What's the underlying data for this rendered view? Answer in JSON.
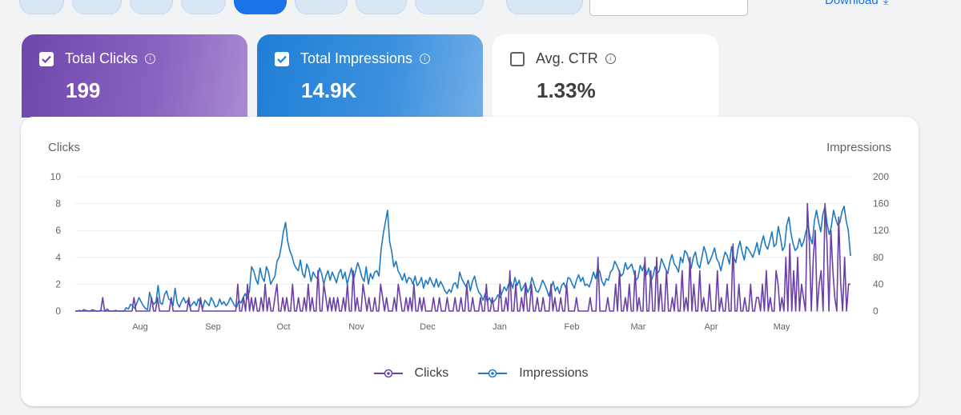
{
  "toolbar": {
    "download_label": "Download",
    "download_icon": "download-icon"
  },
  "cards": [
    {
      "label": "Total Clicks",
      "value": "199",
      "checked": true,
      "color": "#6f46ab"
    },
    {
      "label": "Total Impressions",
      "value": "14.9K",
      "checked": true,
      "color": "#1f7fd6"
    },
    {
      "label": "Avg. CTR",
      "value": "1.33%",
      "checked": false,
      "color": "#ffffff"
    }
  ],
  "chart_data": {
    "type": "line",
    "left_axis_label": "Clicks",
    "right_axis_label": "Impressions",
    "left_ylim": [
      0,
      10
    ],
    "left_ticks": [
      0,
      2,
      4,
      6,
      8,
      10
    ],
    "right_ylim": [
      0,
      200
    ],
    "right_ticks": [
      0,
      40,
      80,
      120,
      160,
      200
    ],
    "x_tick_labels": [
      "Aug",
      "Sep",
      "Oct",
      "Nov",
      "Dec",
      "Jan",
      "Feb",
      "Mar",
      "Apr",
      "May"
    ],
    "grid": true,
    "legend_position": "bottom",
    "series": [
      {
        "name": "Clicks",
        "axis": "left",
        "color": "#6a3fa8",
        "values": [
          0,
          0,
          0,
          0,
          0,
          0,
          0,
          0,
          0,
          0,
          0,
          0,
          0,
          0,
          1,
          0,
          0,
          0,
          0,
          0,
          0,
          0,
          0,
          0,
          0,
          0,
          0,
          0,
          0,
          0,
          1,
          0,
          0,
          0,
          0,
          0,
          0,
          0,
          0,
          1,
          0,
          0,
          1,
          0,
          0,
          0,
          0,
          0,
          0,
          1,
          0,
          0,
          0,
          0,
          0,
          0,
          0,
          0,
          1,
          0,
          0,
          0,
          0,
          0,
          1,
          0,
          0,
          0,
          0,
          0,
          0,
          0,
          0,
          0,
          0,
          0,
          0,
          0,
          0,
          0,
          0,
          0,
          0,
          2,
          0,
          0,
          1,
          0,
          2,
          0,
          1,
          0,
          1,
          0,
          0,
          1,
          0,
          2,
          0,
          1,
          0,
          0,
          1,
          2,
          0,
          0,
          1,
          0,
          1,
          0,
          0,
          2,
          0,
          0,
          1,
          0,
          0,
          1,
          0,
          2,
          0,
          1,
          0,
          0,
          3,
          0,
          0,
          2,
          1,
          0,
          1,
          0,
          1,
          0,
          1,
          0,
          0,
          1,
          0,
          2,
          0,
          0,
          3,
          0,
          1,
          0,
          0,
          2,
          1,
          0,
          1,
          0,
          0,
          1,
          0,
          0,
          2,
          1,
          0,
          1,
          0,
          0,
          0,
          1,
          0,
          2,
          1,
          0,
          0,
          1,
          0,
          1,
          0,
          2,
          0,
          0,
          1,
          0,
          1,
          0,
          0,
          0,
          0,
          1,
          0,
          0,
          1,
          0,
          0,
          0,
          1,
          0,
          0,
          0,
          1,
          0,
          0,
          1,
          0,
          0,
          2,
          0,
          0,
          1,
          0,
          0,
          0,
          1,
          0,
          0,
          2,
          0,
          0,
          1,
          0,
          0,
          0,
          2,
          0,
          0,
          1,
          0,
          3,
          0,
          0,
          2,
          0,
          0,
          1,
          0,
          2,
          0,
          0,
          2,
          0,
          0,
          1,
          0,
          0,
          1,
          0,
          0,
          0,
          2,
          0,
          1,
          0,
          0,
          1,
          0,
          0,
          2,
          0,
          0,
          0,
          0,
          1,
          0,
          0,
          0,
          0,
          0,
          0,
          1,
          0,
          0,
          0,
          4,
          0,
          0,
          0,
          0,
          1,
          0,
          0,
          0,
          2,
          0,
          3,
          0,
          0,
          1,
          0,
          2,
          0,
          0,
          3,
          0,
          1,
          0,
          0,
          4,
          0,
          0,
          3,
          0,
          0,
          4,
          0,
          2,
          0,
          0,
          3,
          0,
          0,
          1,
          0,
          2,
          0,
          0,
          3,
          0,
          1,
          0,
          4,
          0,
          2,
          0,
          0,
          3,
          0,
          1,
          0,
          0,
          2,
          0,
          0,
          0,
          3,
          0,
          1,
          0,
          0,
          2,
          0,
          0,
          5,
          0,
          0,
          2,
          0,
          0,
          1,
          0,
          0,
          2,
          0,
          0,
          1,
          1,
          0,
          2,
          0,
          3,
          0,
          1,
          0,
          0,
          3,
          2,
          0,
          1,
          0,
          4,
          0,
          5,
          0,
          3,
          0,
          4,
          0,
          2,
          1,
          0,
          8,
          5,
          0,
          4,
          6,
          0,
          2,
          3,
          0,
          8,
          5,
          0,
          6,
          3,
          1,
          0,
          7,
          2,
          0,
          4,
          0,
          2,
          2
        ]
      },
      {
        "name": "Impressions",
        "axis": "right",
        "color": "#1f7ac4",
        "values": [
          0,
          0,
          1,
          0,
          2,
          1,
          0,
          0,
          2,
          1,
          0,
          0,
          1,
          0,
          0,
          3,
          0,
          0,
          0,
          1,
          0,
          0,
          0,
          0,
          5,
          3,
          10,
          8,
          4,
          12,
          20,
          14,
          8,
          4,
          2,
          28,
          16,
          10,
          14,
          38,
          12,
          10,
          24,
          30,
          18,
          16,
          8,
          34,
          12,
          6,
          14,
          20,
          12,
          16,
          6,
          10,
          14,
          8,
          18,
          12,
          4,
          16,
          12,
          8,
          20,
          14,
          6,
          8,
          18,
          10,
          14,
          8,
          12,
          20,
          14,
          8,
          6,
          16,
          12,
          20,
          26,
          18,
          30,
          66,
          60,
          48,
          40,
          64,
          50,
          44,
          66,
          58,
          40,
          46,
          52,
          74,
          80,
          96,
          118,
          132,
          104,
          90,
          82,
          70,
          64,
          60,
          76,
          56,
          50,
          70,
          62,
          44,
          58,
          52,
          48,
          64,
          56,
          40,
          52,
          60,
          46,
          58,
          50,
          42,
          56,
          62,
          48,
          58,
          40,
          52,
          64,
          46,
          60,
          72,
          62,
          50,
          44,
          66,
          40,
          56,
          48,
          58,
          60,
          52,
          92,
          114,
          132,
          150,
          104,
          88,
          66,
          74,
          60,
          54,
          46,
          56,
          42,
          50,
          48,
          40,
          52,
          38,
          42,
          50,
          34,
          46,
          40,
          50,
          42,
          36,
          48,
          36,
          44,
          38,
          30,
          26,
          32,
          28,
          40,
          42,
          34,
          58,
          48,
          42,
          36,
          46,
          30,
          44,
          52,
          38,
          28,
          24,
          16,
          26,
          14,
          20,
          12,
          14,
          18,
          24,
          20,
          28,
          36,
          30,
          40,
          44,
          34,
          50,
          38,
          46,
          30,
          36,
          42,
          28,
          34,
          50,
          40,
          30,
          28,
          36,
          46,
          40,
          32,
          22,
          34,
          44,
          30,
          36,
          26,
          38,
          42,
          34,
          50,
          48,
          40,
          34,
          46,
          54,
          44,
          50,
          38,
          40,
          36,
          46,
          58,
          48,
          64,
          58,
          44,
          38,
          48,
          46,
          58,
          62,
          74,
          68,
          60,
          52,
          56,
          72,
          62,
          66,
          70,
          58,
          46,
          50,
          68,
          60,
          70,
          54,
          64,
          44,
          52,
          66,
          56,
          60,
          78,
          70,
          62,
          56,
          74,
          84,
          70,
          66,
          58,
          80,
          72,
          90,
          86,
          74,
          64,
          80,
          88,
          70,
          64,
          80,
          96,
          86,
          70,
          76,
          84,
          94,
          78,
          72,
          60,
          76,
          88,
          82,
          70,
          96,
          80,
          72,
          92,
          104,
          88,
          76,
          96,
          92,
          86,
          80,
          90,
          102,
          84,
          100,
          112,
          98,
          92,
          104,
          118,
          96,
          100,
          126,
          110,
          90,
          96,
          128,
          140,
          116,
          100,
          90,
          94,
          108,
          96,
          104,
          118,
          128,
          110,
          100,
          134,
          150,
          132,
          118,
          144,
          156,
          130,
          114,
          126,
          150,
          138,
          128,
          132,
          148,
          156,
          134,
          120,
          82
        ]
      }
    ]
  },
  "legend": {
    "clicks_label": "Clicks",
    "impressions_label": "Impressions"
  }
}
